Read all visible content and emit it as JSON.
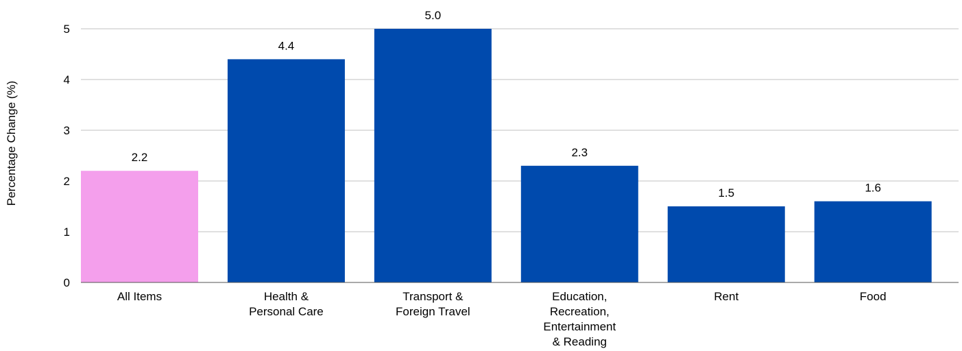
{
  "chart_data": {
    "type": "bar",
    "title": "",
    "xlabel": "",
    "ylabel": "Percentage Change (%)",
    "ylim": [
      0,
      5
    ],
    "yticks": [
      0,
      1,
      2,
      3,
      4,
      5
    ],
    "grid": true,
    "legend": "none",
    "categories": [
      [
        "All Items"
      ],
      [
        "Health &",
        "Personal Care"
      ],
      [
        "Transport &",
        "Foreign Travel"
      ],
      [
        "Education,",
        "Recreation,",
        "Entertainment",
        "& Reading"
      ],
      [
        "Rent"
      ],
      [
        "Food"
      ]
    ],
    "values": [
      2.2,
      4.4,
      5.0,
      2.3,
      1.5,
      1.6
    ],
    "data_labels": [
      "2.2",
      "4.4",
      "5.0",
      "2.3",
      "1.5",
      "1.6"
    ],
    "bar_colors": [
      "#f49fec",
      "#004aad",
      "#004aad",
      "#004aad",
      "#004aad",
      "#004aad"
    ],
    "gridline_color": "#c0c0c0",
    "axis_color": "#555555"
  }
}
